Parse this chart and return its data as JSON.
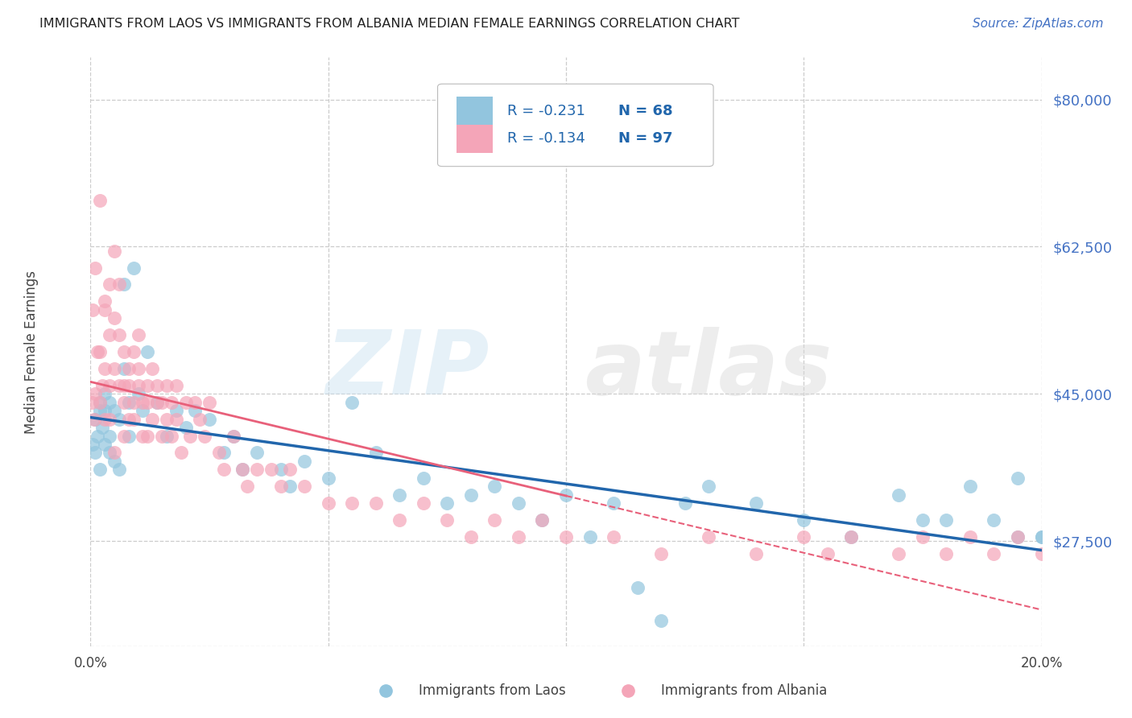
{
  "title": "IMMIGRANTS FROM LAOS VS IMMIGRANTS FROM ALBANIA MEDIAN FEMALE EARNINGS CORRELATION CHART",
  "source": "Source: ZipAtlas.com",
  "ylabel": "Median Female Earnings",
  "yticks": [
    27500,
    45000,
    62500,
    80000
  ],
  "ytick_labels": [
    "$27,500",
    "$45,000",
    "$62,500",
    "$80,000"
  ],
  "xlim": [
    0.0,
    0.2
  ],
  "ylim": [
    15000,
    85000
  ],
  "laos_R": "-0.231",
  "laos_N": "68",
  "albania_R": "-0.134",
  "albania_N": "97",
  "laos_color": "#92c5de",
  "albania_color": "#f4a5b8",
  "laos_line_color": "#2166ac",
  "albania_line_color": "#e8607a",
  "legend_color": "#2166ac",
  "laos_x": [
    0.0005,
    0.001,
    0.001,
    0.0015,
    0.002,
    0.002,
    0.002,
    0.0025,
    0.003,
    0.003,
    0.003,
    0.004,
    0.004,
    0.004,
    0.005,
    0.005,
    0.006,
    0.006,
    0.007,
    0.007,
    0.008,
    0.008,
    0.009,
    0.01,
    0.011,
    0.012,
    0.014,
    0.016,
    0.018,
    0.02,
    0.022,
    0.025,
    0.028,
    0.03,
    0.032,
    0.035,
    0.04,
    0.042,
    0.045,
    0.05,
    0.055,
    0.06,
    0.065,
    0.07,
    0.075,
    0.08,
    0.085,
    0.09,
    0.095,
    0.1,
    0.105,
    0.11,
    0.115,
    0.12,
    0.125,
    0.13,
    0.14,
    0.15,
    0.16,
    0.17,
    0.175,
    0.18,
    0.185,
    0.19,
    0.195,
    0.195,
    0.2,
    0.2
  ],
  "laos_y": [
    39000,
    38000,
    42000,
    40000,
    43000,
    36000,
    44000,
    41000,
    39000,
    43000,
    45000,
    38000,
    40000,
    44000,
    37000,
    43000,
    36000,
    42000,
    48000,
    58000,
    44000,
    40000,
    60000,
    45000,
    43000,
    50000,
    44000,
    40000,
    43000,
    41000,
    43000,
    42000,
    38000,
    40000,
    36000,
    38000,
    36000,
    34000,
    37000,
    35000,
    44000,
    38000,
    33000,
    35000,
    32000,
    33000,
    34000,
    32000,
    30000,
    33000,
    28000,
    32000,
    22000,
    18000,
    32000,
    34000,
    32000,
    30000,
    28000,
    33000,
    30000,
    30000,
    34000,
    30000,
    28000,
    35000,
    28000,
    28000
  ],
  "albania_x": [
    0.0003,
    0.0005,
    0.0008,
    0.001,
    0.001,
    0.0015,
    0.002,
    0.002,
    0.002,
    0.0025,
    0.003,
    0.003,
    0.003,
    0.003,
    0.004,
    0.004,
    0.004,
    0.004,
    0.005,
    0.005,
    0.005,
    0.005,
    0.006,
    0.006,
    0.006,
    0.007,
    0.007,
    0.007,
    0.007,
    0.008,
    0.008,
    0.008,
    0.009,
    0.009,
    0.009,
    0.01,
    0.01,
    0.01,
    0.011,
    0.011,
    0.012,
    0.012,
    0.012,
    0.013,
    0.013,
    0.014,
    0.014,
    0.015,
    0.015,
    0.016,
    0.016,
    0.017,
    0.017,
    0.018,
    0.018,
    0.019,
    0.02,
    0.021,
    0.022,
    0.023,
    0.024,
    0.025,
    0.027,
    0.028,
    0.03,
    0.032,
    0.033,
    0.035,
    0.038,
    0.04,
    0.042,
    0.045,
    0.05,
    0.055,
    0.06,
    0.065,
    0.07,
    0.075,
    0.08,
    0.085,
    0.09,
    0.095,
    0.1,
    0.11,
    0.12,
    0.13,
    0.14,
    0.15,
    0.155,
    0.16,
    0.17,
    0.175,
    0.18,
    0.185,
    0.19,
    0.195,
    0.2
  ],
  "albania_y": [
    44000,
    55000,
    42000,
    60000,
    45000,
    50000,
    68000,
    50000,
    44000,
    46000,
    55000,
    48000,
    56000,
    42000,
    58000,
    46000,
    52000,
    42000,
    54000,
    48000,
    62000,
    38000,
    58000,
    46000,
    52000,
    44000,
    50000,
    46000,
    40000,
    48000,
    42000,
    46000,
    50000,
    44000,
    42000,
    52000,
    48000,
    46000,
    44000,
    40000,
    46000,
    44000,
    40000,
    48000,
    42000,
    44000,
    46000,
    40000,
    44000,
    42000,
    46000,
    44000,
    40000,
    46000,
    42000,
    38000,
    44000,
    40000,
    44000,
    42000,
    40000,
    44000,
    38000,
    36000,
    40000,
    36000,
    34000,
    36000,
    36000,
    34000,
    36000,
    34000,
    32000,
    32000,
    32000,
    30000,
    32000,
    30000,
    28000,
    30000,
    28000,
    30000,
    28000,
    28000,
    26000,
    28000,
    26000,
    28000,
    26000,
    28000,
    26000,
    28000,
    26000,
    28000,
    26000,
    28000,
    26000
  ]
}
